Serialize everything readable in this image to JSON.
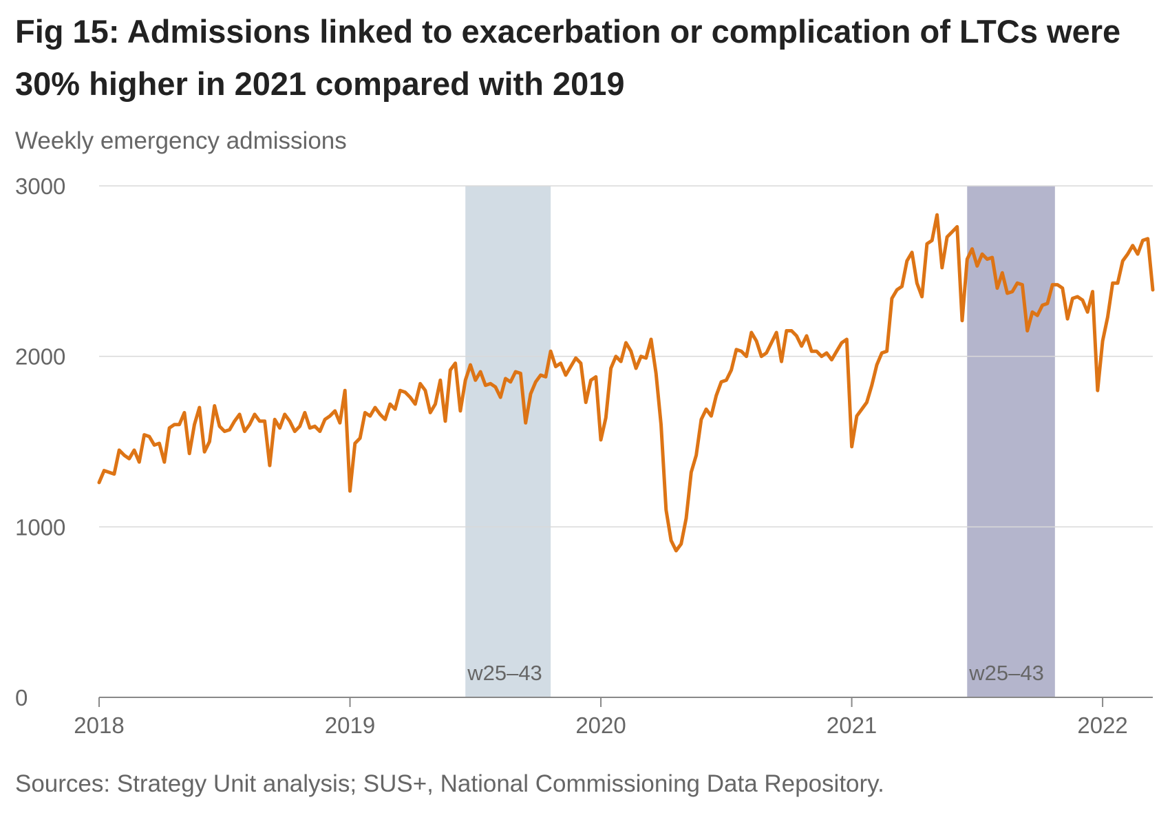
{
  "chart_data": {
    "type": "line",
    "title": "Fig 15: Admissions linked to exacerbation or complication of LTCs were 30% higher in 2021 compared with 2019",
    "subtitle": "Weekly emergency admissions",
    "source": "Sources: Strategy Unit analysis; SUS+, National Commissioning Data Repository.",
    "xlim": [
      2018,
      2022.2
    ],
    "xticks": [
      2018,
      2019,
      2020,
      2021,
      2022
    ],
    "ylim": [
      0,
      3000
    ],
    "yticks": [
      0,
      1000,
      2000,
      3000
    ],
    "grid": true,
    "annotations": [
      {
        "label": "w25–43",
        "start": 2019.46,
        "end": 2019.8,
        "color": "#d2dce4"
      },
      {
        "label": "w25–43",
        "start": 2021.46,
        "end": 2021.81,
        "color": "#b4b5cc"
      }
    ],
    "x": [
      2018,
      2018.02,
      2018.04,
      2018.06,
      2018.08,
      2018.1,
      2018.12,
      2018.14,
      2018.16,
      2018.18,
      2018.2,
      2018.22,
      2018.24,
      2018.26,
      2018.28,
      2018.3,
      2018.32,
      2018.34,
      2018.36,
      2018.38,
      2018.4,
      2018.42,
      2018.44,
      2018.46,
      2018.48,
      2018.5,
      2018.52,
      2018.54,
      2018.56,
      2018.58,
      2018.6,
      2018.62,
      2018.64,
      2018.66,
      2018.68,
      2018.7,
      2018.72,
      2018.74,
      2018.76,
      2018.78,
      2018.8,
      2018.82,
      2018.84,
      2018.86,
      2018.88,
      2018.9,
      2018.92,
      2018.94,
      2018.96,
      2018.98,
      2019,
      2019.02,
      2019.04,
      2019.06,
      2019.08,
      2019.1,
      2019.12,
      2019.14,
      2019.16,
      2019.18,
      2019.2,
      2019.22,
      2019.24,
      2019.26,
      2019.28,
      2019.3,
      2019.32,
      2019.34,
      2019.36,
      2019.38,
      2019.4,
      2019.42,
      2019.44,
      2019.46,
      2019.48,
      2019.5,
      2019.52,
      2019.54,
      2019.56,
      2019.58,
      2019.6,
      2019.62,
      2019.64,
      2019.66,
      2019.68,
      2019.7,
      2019.72,
      2019.74,
      2019.76,
      2019.78,
      2019.8,
      2019.82,
      2019.84,
      2019.86,
      2019.88,
      2019.9,
      2019.92,
      2019.94,
      2019.96,
      2019.98,
      2020,
      2020.02,
      2020.04,
      2020.06,
      2020.08,
      2020.1,
      2020.12,
      2020.14,
      2020.16,
      2020.18,
      2020.2,
      2020.22,
      2020.24,
      2020.26,
      2020.28,
      2020.3,
      2020.32,
      2020.34,
      2020.36,
      2020.38,
      2020.4,
      2020.42,
      2020.44,
      2020.46,
      2020.48,
      2020.5,
      2020.52,
      2020.54,
      2020.56,
      2020.58,
      2020.6,
      2020.62,
      2020.64,
      2020.66,
      2020.68,
      2020.7,
      2020.72,
      2020.74,
      2020.76,
      2020.78,
      2020.8,
      2020.82,
      2020.84,
      2020.86,
      2020.88,
      2020.9,
      2020.92,
      2020.94,
      2020.96,
      2020.98,
      2021,
      2021.02,
      2021.04,
      2021.06,
      2021.08,
      2021.1,
      2021.12,
      2021.14,
      2021.16,
      2021.18,
      2021.2,
      2021.22,
      2021.24,
      2021.26,
      2021.28,
      2021.3,
      2021.32,
      2021.34,
      2021.36,
      2021.38,
      2021.4,
      2021.42,
      2021.44,
      2021.46,
      2021.48,
      2021.5,
      2021.52,
      2021.54,
      2021.56,
      2021.58,
      2021.6,
      2021.62,
      2021.64,
      2021.66,
      2021.68,
      2021.7,
      2021.72,
      2021.74,
      2021.76,
      2021.78,
      2021.8,
      2021.82,
      2021.84,
      2021.86,
      2021.88,
      2021.9,
      2021.92,
      2021.94,
      2021.96,
      2021.98,
      2022,
      2022.02,
      2022.04,
      2022.06,
      2022.08,
      2022.1,
      2022.12,
      2022.14,
      2022.16,
      2022.18,
      2022.2
    ],
    "series": [
      {
        "color": "#dd7415",
        "values": [
          1260,
          1330,
          1320,
          1310,
          1450,
          1420,
          1400,
          1450,
          1380,
          1540,
          1530,
          1480,
          1490,
          1380,
          1580,
          1600,
          1600,
          1670,
          1430,
          1600,
          1700,
          1440,
          1500,
          1710,
          1590,
          1560,
          1570,
          1620,
          1660,
          1560,
          1600,
          1660,
          1620,
          1620,
          1360,
          1630,
          1580,
          1660,
          1620,
          1560,
          1590,
          1670,
          1580,
          1590,
          1560,
          1630,
          1650,
          1680,
          1610,
          1800,
          1210,
          1490,
          1520,
          1670,
          1650,
          1700,
          1660,
          1630,
          1720,
          1690,
          1800,
          1790,
          1760,
          1720,
          1840,
          1800,
          1670,
          1720,
          1860,
          1620,
          1920,
          1960,
          1680,
          1860,
          1950,
          1860,
          1910,
          1830,
          1840,
          1820,
          1760,
          1870,
          1850,
          1910,
          1900,
          1610,
          1780,
          1850,
          1890,
          1880,
          2030,
          1940,
          1960,
          1890,
          1940,
          1990,
          1960,
          1730,
          1860,
          1880,
          1510,
          1640,
          1930,
          2000,
          1970,
          2080,
          2030,
          1930,
          2000,
          1990,
          2100,
          1900,
          1600,
          1100,
          920,
          860,
          900,
          1050,
          1320,
          1420,
          1630,
          1690,
          1650,
          1770,
          1850,
          1860,
          1920,
          2040,
          2030,
          2000,
          2140,
          2090,
          2000,
          2020,
          2080,
          2140,
          1970,
          2150,
          2150,
          2120,
          2060,
          2120,
          2030,
          2030,
          2000,
          2020,
          1980,
          2030,
          2080,
          2100,
          1470,
          1650,
          1690,
          1730,
          1830,
          1950,
          2020,
          2030,
          2340,
          2390,
          2410,
          2560,
          2610,
          2430,
          2350,
          2660,
          2680,
          2830,
          2520,
          2700,
          2730,
          2760,
          2210,
          2570,
          2630,
          2530,
          2600,
          2570,
          2580,
          2400,
          2490,
          2370,
          2380,
          2430,
          2420,
          2150,
          2260,
          2240,
          2300,
          2310,
          2420,
          2420,
          2400,
          2220,
          2340,
          2350,
          2330,
          2260,
          2380,
          1800,
          2090,
          2230,
          2430,
          2430,
          2560,
          2600,
          2650,
          2600,
          2680,
          2690,
          2390
        ]
      }
    ]
  }
}
